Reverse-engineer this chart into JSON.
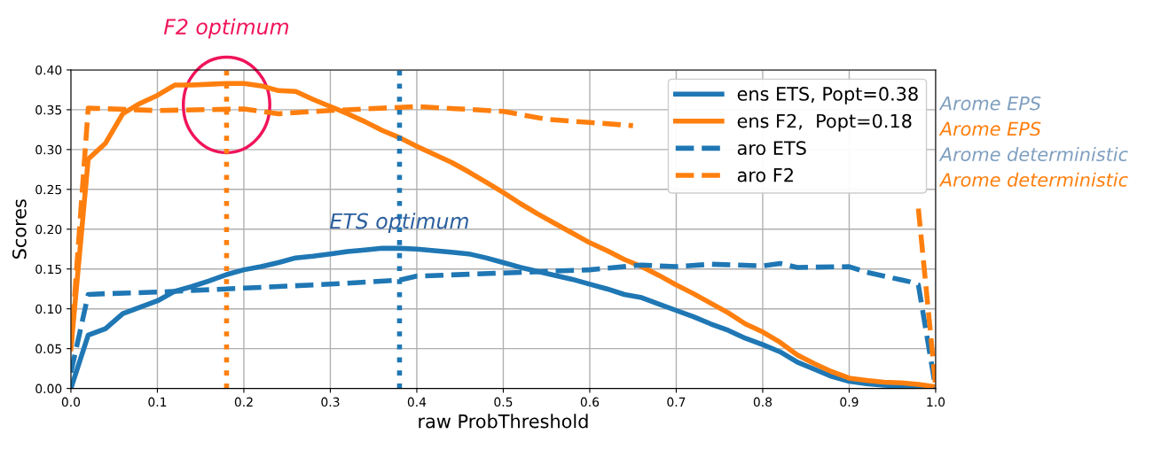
{
  "chart_data": {
    "type": "line",
    "xlabel": "raw ProbThreshold",
    "ylabel": "Scores",
    "xlim": [
      0.0,
      1.0
    ],
    "xticks": [
      {
        "value": 0,
        "label": "0.0"
      },
      0.1,
      0.2,
      0.3,
      0.4,
      0.5,
      0.6,
      0.7,
      0.8,
      0.9,
      {
        "value": 1,
        "label": "1.0"
      }
    ],
    "ylim": [
      0.0,
      0.4
    ],
    "yticks": [
      {
        "value": 0,
        "label": "0.00"
      },
      0.05,
      {
        "value": 0.1,
        "label": "0.10"
      },
      0.15,
      {
        "value": 0.2,
        "label": "0.20"
      },
      0.25,
      {
        "value": 0.3,
        "label": "0.30"
      },
      0.35,
      {
        "value": 0.4,
        "label": "0.40"
      }
    ],
    "grid": true,
    "legend": "top right",
    "series": [
      {
        "name": "ens ETS, Popt=0.38",
        "color": "#1f77b4",
        "line_style": "solid",
        "x": [
          0,
          0.02,
          0.04,
          0.06,
          0.08,
          0.1,
          0.12,
          0.14,
          0.16,
          0.18,
          0.2,
          0.22,
          0.24,
          0.26,
          0.28,
          0.3,
          0.32,
          0.34,
          0.36,
          0.38,
          0.4,
          0.42,
          0.44,
          0.46,
          0.48,
          0.5,
          0.52,
          0.54,
          0.56,
          0.58,
          0.6,
          0.62,
          0.64,
          0.66,
          0.68,
          0.7,
          0.72,
          0.74,
          0.76,
          0.78,
          0.8,
          0.82,
          0.84,
          0.86,
          0.88,
          0.9,
          0.92,
          0.94,
          0.96,
          0.98,
          1.0
        ],
        "values": [
          0.0,
          0.067,
          0.075,
          0.094,
          0.102,
          0.11,
          0.122,
          0.128,
          0.135,
          0.143,
          0.149,
          0.153,
          0.158,
          0.164,
          0.166,
          0.169,
          0.172,
          0.174,
          0.176,
          0.176,
          0.175,
          0.173,
          0.171,
          0.169,
          0.164,
          0.158,
          0.152,
          0.147,
          0.142,
          0.137,
          0.131,
          0.125,
          0.118,
          0.114,
          0.106,
          0.098,
          0.09,
          0.081,
          0.073,
          0.063,
          0.055,
          0.046,
          0.033,
          0.024,
          0.015,
          0.009,
          0.006,
          0.004,
          0.003,
          0.002,
          0.0
        ]
      },
      {
        "name": "ens F2,  Popt=0.18",
        "color": "#ff7f0e",
        "line_style": "solid",
        "x": [
          0,
          0.02,
          0.04,
          0.06,
          0.08,
          0.1,
          0.12,
          0.14,
          0.16,
          0.18,
          0.2,
          0.22,
          0.24,
          0.26,
          0.28,
          0.3,
          0.32,
          0.34,
          0.36,
          0.38,
          0.4,
          0.42,
          0.44,
          0.46,
          0.48,
          0.5,
          0.52,
          0.54,
          0.56,
          0.58,
          0.6,
          0.62,
          0.64,
          0.66,
          0.68,
          0.7,
          0.72,
          0.74,
          0.76,
          0.78,
          0.8,
          0.82,
          0.84,
          0.86,
          0.88,
          0.9,
          0.92,
          0.94,
          0.96,
          0.98,
          1.0
        ],
        "values": [
          0.05,
          0.288,
          0.308,
          0.345,
          0.358,
          0.368,
          0.381,
          0.381,
          0.382,
          0.383,
          0.383,
          0.38,
          0.374,
          0.373,
          0.363,
          0.354,
          0.345,
          0.335,
          0.324,
          0.315,
          0.304,
          0.294,
          0.284,
          0.272,
          0.259,
          0.246,
          0.232,
          0.219,
          0.207,
          0.195,
          0.183,
          0.173,
          0.162,
          0.153,
          0.142,
          0.13,
          0.119,
          0.107,
          0.095,
          0.081,
          0.071,
          0.058,
          0.042,
          0.031,
          0.021,
          0.013,
          0.01,
          0.008,
          0.007,
          0.005,
          0.002
        ]
      },
      {
        "name": "aro ETS",
        "color": "#1f77b4",
        "line_style": "dashed",
        "x": [
          0,
          0.02,
          0.04,
          0.1,
          0.2,
          0.3,
          0.38,
          0.4,
          0.5,
          0.6,
          0.66,
          0.7,
          0.74,
          0.8,
          0.82,
          0.84,
          0.9,
          0.92,
          0.97,
          0.98,
          1.0
        ],
        "values": [
          0.02,
          0.118,
          0.119,
          0.121,
          0.126,
          0.131,
          0.136,
          0.141,
          0.145,
          0.149,
          0.155,
          0.153,
          0.156,
          0.154,
          0.157,
          0.152,
          0.153,
          0.146,
          0.134,
          0.13,
          0.0
        ]
      },
      {
        "name": "aro F2",
        "color": "#ff7f0e",
        "line_style": "dashed",
        "x": [
          0,
          0.02,
          0.1,
          0.2,
          0.24,
          0.3,
          0.4,
          0.5,
          0.55,
          0.6,
          0.65,
          0.7,
          0.8,
          0.9,
          0.98,
          1.0
        ],
        "values": [
          0.05,
          0.352,
          0.349,
          0.351,
          0.345,
          0.349,
          0.354,
          0.348,
          0.338,
          0.334,
          0.33,
          null,
          null,
          null,
          0.226,
          0.003
        ]
      }
    ],
    "ref_lines": [
      {
        "axis": "x",
        "value": 0.18,
        "color": "#ff7f0e",
        "line_style": "dotted"
      },
      {
        "axis": "x",
        "value": 0.38,
        "color": "#1f77b4",
        "line_style": "dotted"
      }
    ],
    "annotations": [
      "F2 optimum",
      "ETS optimum",
      "Arome EPS",
      "Arome EPS",
      "Arome deterministic",
      "Arome deterministic"
    ]
  }
}
